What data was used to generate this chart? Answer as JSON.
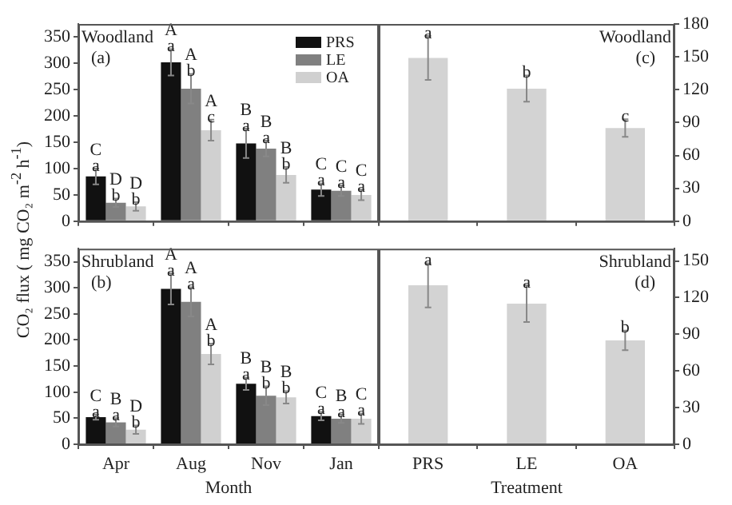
{
  "chart_data": [
    {
      "type": "bar",
      "categories": [
        null,
        null,
        null,
        null
      ],
      "ylabel": "CO₂ flux ( mg CO₂ m$^{-2}$ h$^{-1}$)",
      "ylim": [
        0,
        375
      ],
      "yticks": [
        0,
        50,
        100,
        150,
        200,
        250,
        300,
        350
      ],
      "tick_labels": "y",
      "legend": "top right",
      "annotations": [
        "Woodland",
        "(a)"
      ],
      "series": [
        {
          "name": "PRS",
          "color": "#111111",
          "values": [
            85,
            302,
            148,
            60
          ],
          "errors": [
            15,
            25,
            28,
            12
          ],
          "value_labels": [
            "C\na",
            "A\na",
            "B\na",
            "C\na"
          ]
        },
        {
          "name": "LE",
          "color": "#808080",
          "values": [
            35,
            252,
            138,
            58
          ],
          "errors": [
            8,
            28,
            15,
            10
          ],
          "value_labels": [
            "D\nb",
            "A\nb",
            "B\na",
            "C\na"
          ]
        },
        {
          "name": "OA",
          "color": "#d0d0d0",
          "values": [
            28,
            173,
            88,
            50
          ],
          "errors": [
            8,
            20,
            15,
            10
          ],
          "value_labels": [
            "D\nb",
            "A\nc",
            "B\nb",
            "C\na"
          ]
        }
      ]
    },
    {
      "type": "bar",
      "categories": [
        null,
        null,
        null
      ],
      "ylim": [
        0,
        180
      ],
      "yticks": [
        0,
        30,
        60,
        90,
        120,
        150,
        180
      ],
      "tick_labels": "y",
      "annotations": [
        "Woodland",
        "(c)"
      ],
      "series": [
        {
          "color": "#d3d3d3",
          "values": [
            149,
            121,
            85
          ],
          "errors": [
            20,
            12,
            8
          ],
          "value_labels": [
            "a",
            "b",
            "c"
          ]
        }
      ]
    },
    {
      "type": "bar",
      "categories": [
        "Apr",
        "Aug",
        "Nov",
        "Jan"
      ],
      "xlabel": "Month",
      "ylim": [
        0,
        375
      ],
      "yticks": [
        0,
        50,
        100,
        150,
        200,
        250,
        300,
        350
      ],
      "annotations": [
        "Shrubland",
        "(b)"
      ],
      "series": [
        {
          "color": "#111111",
          "values": [
            52,
            298,
            116,
            54
          ],
          "errors": [
            5,
            30,
            12,
            8
          ],
          "value_labels": [
            "C\na",
            "A\na",
            "B\na",
            "C\na"
          ]
        },
        {
          "color": "#808080",
          "values": [
            42,
            273,
            93,
            49
          ],
          "errors": [
            8,
            28,
            18,
            8
          ],
          "value_labels": [
            "B\na",
            "A\na",
            "B\nb",
            "B\na"
          ]
        },
        {
          "color": "#d0d0d0",
          "values": [
            28,
            173,
            90,
            49
          ],
          "errors": [
            8,
            20,
            12,
            10
          ],
          "value_labels": [
            "D\nb",
            "A\nb",
            "B\nb",
            "C\na"
          ]
        }
      ]
    },
    {
      "type": "bar",
      "categories": [
        "PRS",
        "LE",
        "OA"
      ],
      "xlabel": "Treatment",
      "ylim": [
        0,
        160
      ],
      "yticks": [
        0,
        30,
        60,
        90,
        120,
        150
      ],
      "annotations": [
        "Shrubland",
        "(d)"
      ],
      "series": [
        {
          "color": "#d3d3d3",
          "values": [
            130,
            115,
            85
          ],
          "errors": [
            18,
            15,
            8
          ],
          "value_labels": [
            "a",
            "a",
            "b"
          ]
        }
      ]
    }
  ]
}
